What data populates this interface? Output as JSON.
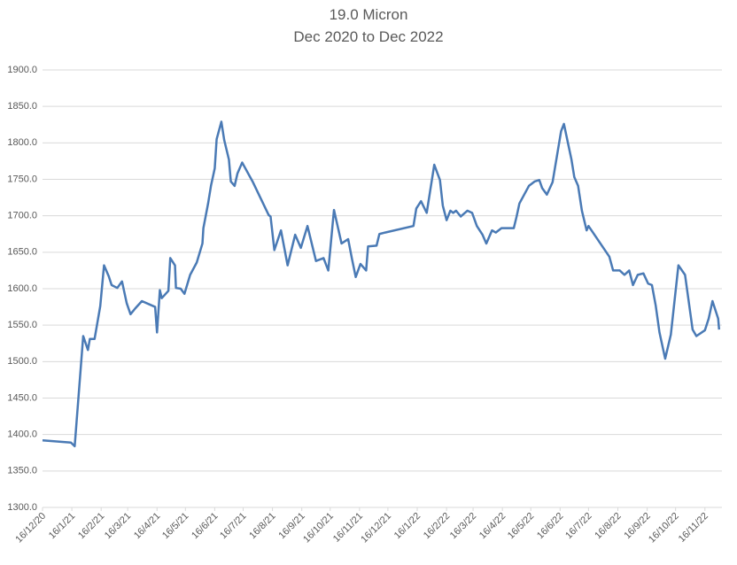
{
  "chart_data": {
    "type": "line",
    "title": "19.0 Micron",
    "subtitle": "Dec 2020 to Dec 2022",
    "grid": true,
    "color": "#4a7ab5",
    "xlim": [
      "2020-12-16",
      "2022-12-04"
    ],
    "ylim": [
      1300,
      1900
    ],
    "yticks": [
      {
        "value": 1300,
        "label": "1300.0"
      },
      {
        "value": 1350,
        "label": "1350.0"
      },
      {
        "value": 1400,
        "label": "1400.0"
      },
      {
        "value": 1450,
        "label": "1450.0"
      },
      {
        "value": 1500,
        "label": "1500.0"
      },
      {
        "value": 1550,
        "label": "1550.0"
      },
      {
        "value": 1600,
        "label": "1600.0"
      },
      {
        "value": 1650,
        "label": "1650.0"
      },
      {
        "value": 1700,
        "label": "1700.0"
      },
      {
        "value": 1750,
        "label": "1750.0"
      },
      {
        "value": 1800,
        "label": "1800.0"
      },
      {
        "value": 1850,
        "label": "1850.0"
      },
      {
        "value": 1900,
        "label": "1900.0"
      }
    ],
    "xticks": [
      {
        "value": "2020-12-16",
        "label": "16/12/20"
      },
      {
        "value": "2021-01-16",
        "label": "16/1/21"
      },
      {
        "value": "2021-02-16",
        "label": "16/2/21"
      },
      {
        "value": "2021-03-16",
        "label": "16/3/21"
      },
      {
        "value": "2021-04-16",
        "label": "16/4/21"
      },
      {
        "value": "2021-05-16",
        "label": "16/5/21"
      },
      {
        "value": "2021-06-16",
        "label": "16/6/21"
      },
      {
        "value": "2021-07-16",
        "label": "16/7/21"
      },
      {
        "value": "2021-08-16",
        "label": "16/8/21"
      },
      {
        "value": "2021-09-16",
        "label": "16/9/21"
      },
      {
        "value": "2021-10-16",
        "label": "16/10/21"
      },
      {
        "value": "2021-11-16",
        "label": "16/11/21"
      },
      {
        "value": "2021-12-16",
        "label": "16/12/21"
      },
      {
        "value": "2022-01-16",
        "label": "16/1/22"
      },
      {
        "value": "2022-02-16",
        "label": "16/2/22"
      },
      {
        "value": "2022-03-16",
        "label": "16/3/22"
      },
      {
        "value": "2022-04-16",
        "label": "16/4/22"
      },
      {
        "value": "2022-05-16",
        "label": "16/5/22"
      },
      {
        "value": "2022-06-16",
        "label": "16/6/22"
      },
      {
        "value": "2022-07-16",
        "label": "16/7/22"
      },
      {
        "value": "2022-08-16",
        "label": "16/8/22"
      },
      {
        "value": "2022-09-16",
        "label": "16/9/22"
      },
      {
        "value": "2022-10-16",
        "label": "16/10/22"
      },
      {
        "value": "2022-11-16",
        "label": "16/11/22"
      }
    ],
    "x": [
      "2020-12-16",
      "2021-01-15",
      "2021-01-19",
      "2021-01-28",
      "2021-02-02",
      "2021-02-04",
      "2021-02-09",
      "2021-02-15",
      "2021-02-19",
      "2021-02-24",
      "2021-02-27",
      "2021-03-05",
      "2021-03-10",
      "2021-03-15",
      "2021-03-19",
      "2021-03-24",
      "2021-03-31",
      "2021-04-14",
      "2021-04-16",
      "2021-04-19",
      "2021-04-21",
      "2021-04-28",
      "2021-04-30",
      "2021-05-05",
      "2021-05-06",
      "2021-05-11",
      "2021-05-15",
      "2021-05-21",
      "2021-05-28",
      "2021-06-03",
      "2021-06-04",
      "2021-06-09",
      "2021-06-12",
      "2021-06-16",
      "2021-06-18",
      "2021-06-23",
      "2021-06-26",
      "2021-07-01",
      "2021-07-03",
      "2021-07-07",
      "2021-07-10",
      "2021-07-15",
      "2021-07-26",
      "2021-08-12",
      "2021-08-14",
      "2021-08-18",
      "2021-08-25",
      "2021-09-01",
      "2021-09-09",
      "2021-09-15",
      "2021-09-22",
      "2021-10-01",
      "2021-10-09",
      "2021-10-14",
      "2021-10-20",
      "2021-10-28",
      "2021-11-04",
      "2021-11-08",
      "2021-11-12",
      "2021-11-17",
      "2021-11-23",
      "2021-11-25",
      "2021-12-04",
      "2021-12-07",
      "2021-12-13",
      "2022-01-12",
      "2022-01-15",
      "2022-01-20",
      "2022-01-26",
      "2022-02-03",
      "2022-02-09",
      "2022-02-12",
      "2022-02-16",
      "2022-02-20",
      "2022-02-23",
      "2022-02-26",
      "2022-03-03",
      "2022-03-10",
      "2022-03-15",
      "2022-03-20",
      "2022-03-26",
      "2022-03-30",
      "2022-04-05",
      "2022-04-09",
      "2022-04-15",
      "2022-04-28",
      "2022-05-01",
      "2022-05-04",
      "2022-05-09",
      "2022-05-14",
      "2022-05-20",
      "2022-05-25",
      "2022-05-28",
      "2022-06-02",
      "2022-06-08",
      "2022-06-17",
      "2022-06-20",
      "2022-06-28",
      "2022-07-01",
      "2022-07-05",
      "2022-07-09",
      "2022-07-14",
      "2022-07-16",
      "2022-08-07",
      "2022-08-11",
      "2022-08-18",
      "2022-08-23",
      "2022-08-28",
      "2022-09-01",
      "2022-09-06",
      "2022-09-12",
      "2022-09-17",
      "2022-09-21",
      "2022-09-25",
      "2022-09-29",
      "2022-10-05",
      "2022-10-11",
      "2022-10-19",
      "2022-10-26",
      "2022-11-03",
      "2022-11-07",
      "2022-11-16",
      "2022-11-20",
      "2022-11-24",
      "2022-11-30",
      "2022-12-01"
    ],
    "values": [
      1392,
      1389,
      1384,
      1535,
      1516,
      1531,
      1531,
      1576,
      1632,
      1617,
      1605,
      1601,
      1610,
      1580,
      1565,
      1573,
      1583,
      1575,
      1540,
      1598,
      1587,
      1597,
      1642,
      1632,
      1601,
      1600,
      1593,
      1619,
      1636,
      1662,
      1683,
      1717,
      1741,
      1765,
      1805,
      1829,
      1804,
      1777,
      1747,
      1741,
      1758,
      1773,
      1747,
      1701,
      1699,
      1653,
      1680,
      1632,
      1674,
      1656,
      1686,
      1638,
      1642,
      1625,
      1708,
      1662,
      1668,
      1641,
      1616,
      1634,
      1625,
      1658,
      1659,
      1675,
      1677,
      1686,
      1710,
      1720,
      1704,
      1770,
      1749,
      1714,
      1694,
      1707,
      1704,
      1707,
      1699,
      1707,
      1704,
      1686,
      1674,
      1662,
      1680,
      1677,
      1683,
      1683,
      1699,
      1717,
      1729,
      1741,
      1747,
      1749,
      1738,
      1729,
      1746,
      1816,
      1826,
      1777,
      1753,
      1741,
      1707,
      1680,
      1686,
      1644,
      1625,
      1625,
      1619,
      1625,
      1605,
      1619,
      1621,
      1607,
      1605,
      1577,
      1540,
      1504,
      1537,
      1632,
      1619,
      1544,
      1535,
      1543,
      1559,
      1583,
      1559,
      1544
    ]
  }
}
